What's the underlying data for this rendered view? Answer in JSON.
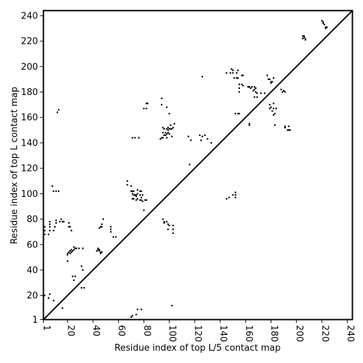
{
  "chart_data": {
    "type": "scatter",
    "xlabel": "Residue index of top L/5 contact map",
    "ylabel": "Residue index of top L contact map",
    "xlim": [
      1,
      244
    ],
    "ylim": [
      1,
      244
    ],
    "xticks": [
      1,
      20,
      40,
      60,
      80,
      100,
      120,
      140,
      160,
      180,
      200,
      220,
      240
    ],
    "yticks": [
      1,
      20,
      40,
      60,
      80,
      100,
      120,
      140,
      160,
      180,
      200,
      220,
      240
    ],
    "grid": false,
    "legend": "none",
    "diagonal": true,
    "marker_color": "#000000",
    "series": [
      {
        "marker": "square",
        "points": [
          [
            2,
            20
          ],
          [
            5,
            18
          ],
          [
            6,
            21
          ],
          [
            9,
            16
          ],
          [
            16,
            10
          ],
          [
            70,
            1
          ],
          [
            70,
            3
          ],
          [
            71,
            4
          ],
          [
            74,
            5
          ],
          [
            75,
            9
          ],
          [
            78,
            9
          ],
          [
            102,
            12
          ],
          [
            31,
            26
          ],
          [
            33,
            26
          ],
          [
            25,
            32
          ],
          [
            26,
            35
          ],
          [
            24,
            35
          ],
          [
            32,
            40
          ],
          [
            31,
            43
          ],
          [
            20,
            47
          ],
          [
            20,
            52
          ],
          [
            20,
            53
          ],
          [
            21,
            54
          ],
          [
            22,
            53
          ],
          [
            22,
            55
          ],
          [
            23,
            54
          ],
          [
            24,
            55
          ],
          [
            23,
            56
          ],
          [
            25,
            56
          ],
          [
            26,
            57
          ],
          [
            25,
            58
          ],
          [
            27,
            57
          ],
          [
            29,
            57
          ],
          [
            32,
            57
          ],
          [
            43,
            55
          ],
          [
            44,
            57
          ],
          [
            44,
            56
          ],
          [
            45,
            56
          ],
          [
            45,
            55
          ],
          [
            46,
            54
          ],
          [
            47,
            54
          ],
          [
            46,
            53
          ],
          [
            45,
            73
          ],
          [
            46,
            74
          ],
          [
            47,
            74
          ],
          [
            47,
            76
          ],
          [
            48,
            80
          ],
          [
            54,
            70
          ],
          [
            54,
            72
          ],
          [
            54,
            74
          ],
          [
            56,
            66
          ],
          [
            58,
            66
          ],
          [
            2,
            68
          ],
          [
            2,
            71
          ],
          [
            2,
            74
          ],
          [
            5,
            68
          ],
          [
            6,
            71
          ],
          [
            6,
            74
          ],
          [
            6,
            76
          ],
          [
            6,
            78
          ],
          [
            9,
            71
          ],
          [
            10,
            74
          ],
          [
            11,
            77
          ],
          [
            11,
            79
          ],
          [
            14,
            78
          ],
          [
            15,
            80
          ],
          [
            16,
            78
          ],
          [
            17,
            78
          ],
          [
            21,
            74
          ],
          [
            21,
            77
          ],
          [
            22,
            74
          ],
          [
            23,
            71
          ],
          [
            11,
            102
          ],
          [
            13,
            102
          ],
          [
            9,
            102
          ],
          [
            8,
            106
          ],
          [
            12,
            164
          ],
          [
            13,
            166
          ],
          [
            67,
            110
          ],
          [
            67,
            107
          ],
          [
            70,
            106
          ],
          [
            70,
            102
          ],
          [
            71,
            102
          ],
          [
            72,
            102
          ],
          [
            71,
            100
          ],
          [
            72,
            99
          ],
          [
            73,
            99
          ],
          [
            74,
            98
          ],
          [
            74,
            99
          ],
          [
            75,
            100
          ],
          [
            75,
            96
          ],
          [
            74,
            95
          ],
          [
            71,
            96
          ],
          [
            72,
            96
          ],
          [
            77,
            95
          ],
          [
            78,
            95
          ],
          [
            77,
            99
          ],
          [
            78,
            97
          ],
          [
            77,
            102
          ],
          [
            78,
            102
          ],
          [
            79,
            99
          ],
          [
            79,
            94
          ],
          [
            81,
            95
          ],
          [
            82,
            95
          ],
          [
            75,
            103
          ],
          [
            80,
            87
          ],
          [
            95,
            80
          ],
          [
            96,
            78
          ],
          [
            98,
            78
          ],
          [
            96,
            77
          ],
          [
            99,
            76
          ],
          [
            100,
            75
          ],
          [
            103,
            69
          ],
          [
            103,
            72
          ],
          [
            103,
            75
          ],
          [
            99,
            72
          ],
          [
            71,
            144
          ],
          [
            73,
            144
          ],
          [
            76,
            144
          ],
          [
            80,
            167
          ],
          [
            82,
            167
          ],
          [
            82,
            171
          ],
          [
            83,
            171
          ],
          [
            93,
            143
          ],
          [
            94,
            144
          ],
          [
            95,
            144
          ],
          [
            96,
            146
          ],
          [
            95,
            148
          ],
          [
            97,
            148
          ],
          [
            98,
            144
          ],
          [
            98,
            147
          ],
          [
            99,
            148
          ],
          [
            99,
            150
          ],
          [
            100,
            151
          ],
          [
            101,
            151
          ],
          [
            101,
            154
          ],
          [
            102,
            151
          ],
          [
            96,
            151
          ],
          [
            98,
            151
          ],
          [
            99,
            152
          ],
          [
            95,
            152
          ],
          [
            97,
            146
          ],
          [
            100,
            147
          ],
          [
            102,
            145
          ],
          [
            103,
            152
          ],
          [
            104,
            155
          ],
          [
            94,
            170
          ],
          [
            94,
            175
          ],
          [
            100,
            163
          ],
          [
            98,
            168
          ],
          [
            115,
            145
          ],
          [
            117,
            142
          ],
          [
            116,
            123
          ],
          [
            124,
            146
          ],
          [
            125,
            142
          ],
          [
            126,
            145
          ],
          [
            128,
            146
          ],
          [
            130,
            143
          ],
          [
            133,
            140
          ],
          [
            126,
            192
          ],
          [
            145,
            96
          ],
          [
            147,
            97
          ],
          [
            150,
            99
          ],
          [
            152,
            97
          ],
          [
            152,
            99
          ],
          [
            152,
            101
          ],
          [
            145,
            195
          ],
          [
            148,
            195
          ],
          [
            149,
            198
          ],
          [
            150,
            197
          ],
          [
            150,
            195
          ],
          [
            151,
            191
          ],
          [
            153,
            191
          ],
          [
            153,
            195
          ],
          [
            154,
            197
          ],
          [
            154,
            191
          ],
          [
            155,
            186
          ],
          [
            155,
            183
          ],
          [
            155,
            180
          ],
          [
            157,
            186
          ],
          [
            158,
            185
          ],
          [
            158,
            193
          ],
          [
            157,
            193
          ],
          [
            152,
            163
          ],
          [
            154,
            163
          ],
          [
            155,
            163
          ],
          [
            163,
            154
          ],
          [
            163,
            155
          ],
          [
            162,
            184
          ],
          [
            163,
            184
          ],
          [
            164,
            183
          ],
          [
            165,
            184
          ],
          [
            167,
            184
          ],
          [
            166,
            181
          ],
          [
            167,
            182
          ],
          [
            168,
            183
          ],
          [
            168,
            180
          ],
          [
            169,
            179
          ],
          [
            167,
            176
          ],
          [
            169,
            176
          ],
          [
            172,
            179
          ],
          [
            175,
            179
          ],
          [
            177,
            193
          ],
          [
            178,
            190
          ],
          [
            179,
            190
          ],
          [
            180,
            188
          ],
          [
            180,
            187
          ],
          [
            181,
            188
          ],
          [
            182,
            191
          ],
          [
            182,
            171
          ],
          [
            179,
            170
          ],
          [
            180,
            168
          ],
          [
            179,
            167
          ],
          [
            182,
            167
          ],
          [
            184,
            167
          ],
          [
            182,
            162
          ],
          [
            183,
            163
          ],
          [
            181,
            165
          ],
          [
            183,
            154
          ],
          [
            188,
            182
          ],
          [
            189,
            180
          ],
          [
            190,
            181
          ],
          [
            190,
            181
          ],
          [
            191,
            180
          ],
          [
            191,
            152
          ],
          [
            191,
            153
          ],
          [
            194,
            153
          ],
          [
            194,
            150
          ],
          [
            193,
            150
          ],
          [
            195,
            150
          ],
          [
            205,
            224
          ],
          [
            205,
            222
          ],
          [
            206,
            224
          ],
          [
            206,
            223
          ],
          [
            207,
            222
          ],
          [
            207,
            221
          ],
          [
            220,
            236
          ],
          [
            221,
            235
          ],
          [
            221,
            234
          ],
          [
            222,
            233
          ],
          [
            223,
            230
          ],
          [
            223,
            231
          ],
          [
            224,
            231
          ]
        ]
      }
    ]
  }
}
